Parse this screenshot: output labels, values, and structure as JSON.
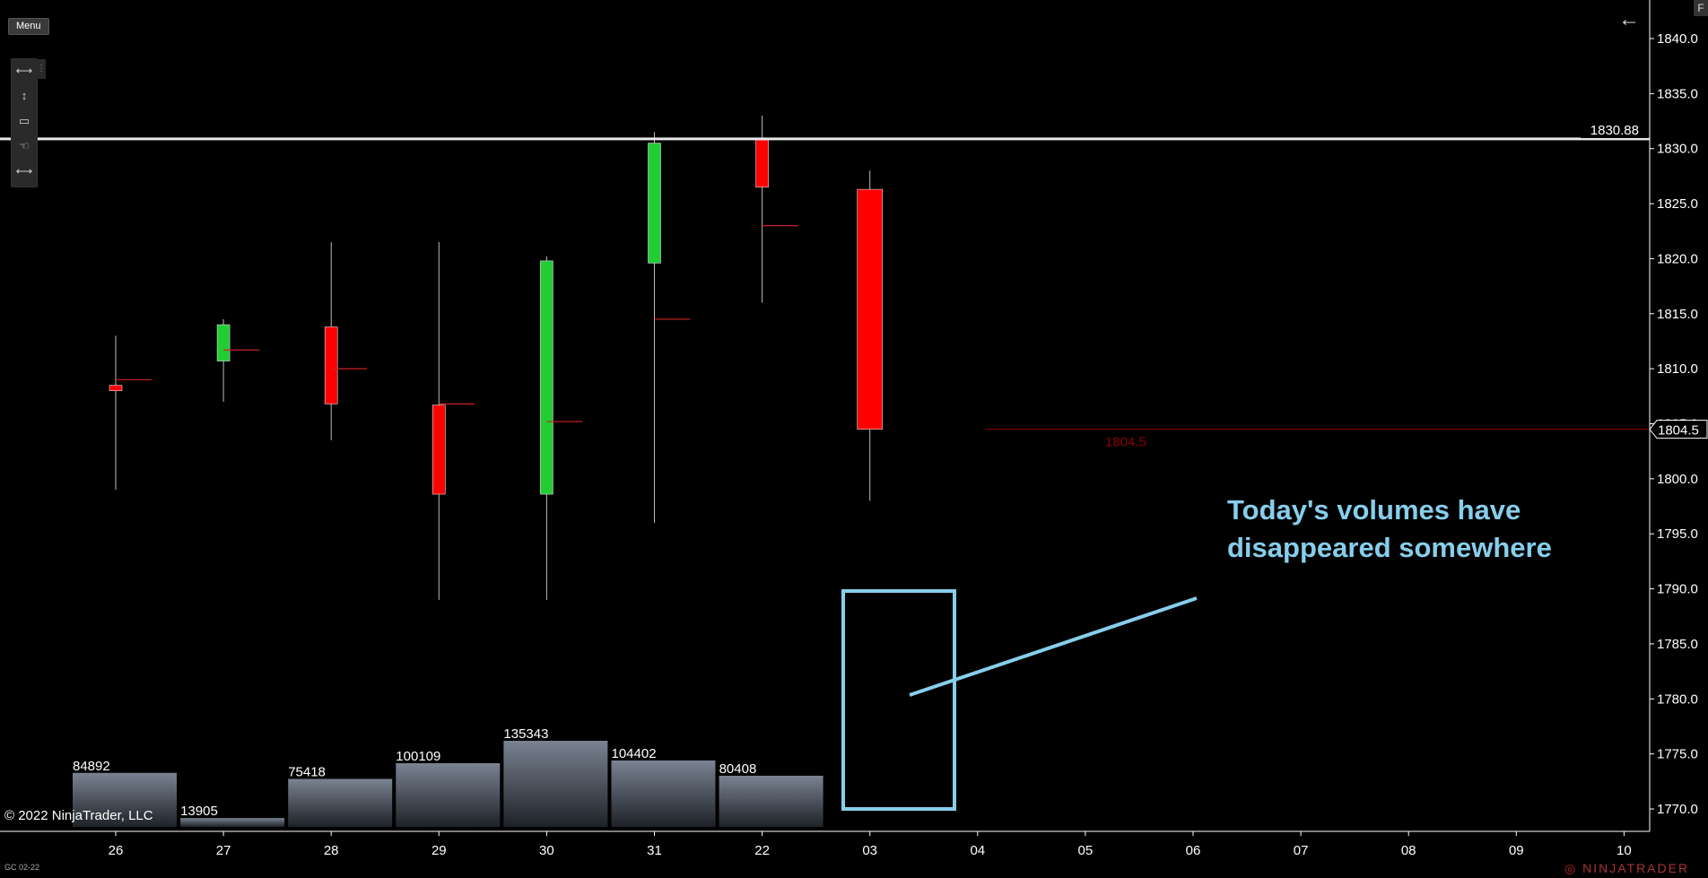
{
  "menu_label": "Menu",
  "f_label": "F",
  "back_icon": "arrow-left-icon",
  "drawing_tools": [
    {
      "icon": "horizontal-arrows-icon",
      "glyph": "⟷"
    },
    {
      "icon": "vertical-arrows-icon",
      "glyph": "↕"
    },
    {
      "icon": "rectangle-icon",
      "glyph": "▭"
    },
    {
      "icon": "pointer-hand-icon",
      "glyph": "☜"
    },
    {
      "icon": "horizontal-arrows-icon",
      "glyph": "⟷"
    }
  ],
  "copyright": "© 2022 NinjaTrader, LLC",
  "instrument": "GC 02-22",
  "logo_text": "NINJATRADER",
  "annotation": "Today's volumes have disappeared somewhere",
  "colors": {
    "up": "#22cc33",
    "down": "#ff0000",
    "annotation": "#87ceeb",
    "axis": "#ffffff",
    "priceline": "#8b0000"
  },
  "chart_data": {
    "type": "candlestick",
    "y_axis": {
      "ylim": [
        1768,
        1842
      ],
      "ticks": [
        "1840.0",
        "1835.0",
        "1830.0",
        "1825.0",
        "1820.0",
        "1815.0",
        "1810.0",
        "1805.0",
        "1800.0",
        "1795.0",
        "1790.0",
        "1785.0",
        "1780.0",
        "1775.0",
        "1770.0"
      ]
    },
    "x_axis_labels": [
      "26",
      "27",
      "28",
      "29",
      "30",
      "31",
      "22",
      "03",
      "04",
      "05",
      "06",
      "07",
      "08",
      "09",
      "10"
    ],
    "candles": [
      {
        "x": "26",
        "open": 1808.5,
        "high": 1813.0,
        "low": 1799.0,
        "close": 1808.0,
        "vwap": 1809.0
      },
      {
        "x": "27",
        "open": 1810.7,
        "high": 1814.5,
        "low": 1807.0,
        "close": 1814.0,
        "vwap": 1811.7
      },
      {
        "x": "28",
        "open": 1813.8,
        "high": 1821.5,
        "low": 1803.5,
        "close": 1806.8,
        "vwap": 1810.0
      },
      {
        "x": "29",
        "open": 1806.7,
        "high": 1821.5,
        "low": 1789.0,
        "close": 1798.6,
        "vwap": 1806.8
      },
      {
        "x": "30",
        "open": 1798.6,
        "high": 1820.2,
        "low": 1789.0,
        "close": 1819.8,
        "vwap": 1805.2
      },
      {
        "x": "31",
        "open": 1819.6,
        "high": 1831.5,
        "low": 1796.0,
        "close": 1830.5,
        "vwap": 1814.5
      },
      {
        "x": "22",
        "open": 1830.8,
        "high": 1833.0,
        "low": 1816.0,
        "close": 1826.5,
        "vwap": 1823.0
      },
      {
        "x": "03",
        "open": 1826.3,
        "high": 1828.0,
        "low": 1798.0,
        "close": 1804.5,
        "vwap": null
      }
    ],
    "volume": [
      {
        "x": "26",
        "value": 84892
      },
      {
        "x": "27",
        "value": 13905
      },
      {
        "x": "28",
        "value": 75418
      },
      {
        "x": "29",
        "value": 100109
      },
      {
        "x": "30",
        "value": 135343
      },
      {
        "x": "31",
        "value": 104402
      },
      {
        "x": "22",
        "value": 80408
      }
    ],
    "horizontal_line": {
      "value": 1830.88,
      "label": "1830.88"
    },
    "last_price": {
      "value": 1804.5,
      "label": "1804.5"
    }
  }
}
